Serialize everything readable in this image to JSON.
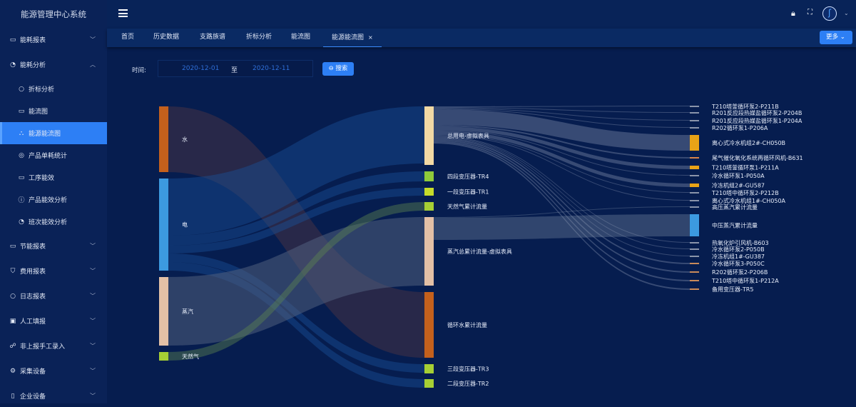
{
  "app": {
    "title": "能源管理中心系统"
  },
  "sidebar": {
    "items": [
      {
        "label": "能耗报表",
        "icon": "report-icon",
        "expand": "down"
      },
      {
        "label": "能耗分析",
        "icon": "analysis-icon",
        "expand": "up"
      },
      {
        "label": "折标分析",
        "icon": "chat-icon",
        "child": true
      },
      {
        "label": "能流图",
        "icon": "report-icon",
        "child": true
      },
      {
        "label": "能源能流图",
        "icon": "sitemap-icon",
        "child": true,
        "active": true
      },
      {
        "label": "产品单耗统计",
        "icon": "location-icon",
        "child": true
      },
      {
        "label": "工序能效",
        "icon": "message-icon",
        "child": true
      },
      {
        "label": "产品能效分析",
        "icon": "info-icon",
        "child": true
      },
      {
        "label": "班次能效分析",
        "icon": "analysis-icon",
        "child": true
      },
      {
        "label": "节能报表",
        "icon": "message-icon",
        "expand": "down"
      },
      {
        "label": "费用报表",
        "icon": "shield-check-icon",
        "expand": "down"
      },
      {
        "label": "日志报表",
        "icon": "chat-icon",
        "expand": "down"
      },
      {
        "label": "人工填报",
        "icon": "image-icon",
        "expand": "down"
      },
      {
        "label": "非上报手工录入",
        "icon": "wechat-icon",
        "expand": "down"
      },
      {
        "label": "采集设备",
        "icon": "gear-icon",
        "expand": "down"
      },
      {
        "label": "企业设备",
        "icon": "mobile-icon",
        "expand": "down"
      }
    ]
  },
  "tabs": [
    {
      "label": "首页"
    },
    {
      "label": "历史数据"
    },
    {
      "label": "支路族谱"
    },
    {
      "label": "折标分析"
    },
    {
      "label": "能流图"
    },
    {
      "label": "能源能流图",
      "active": true,
      "closable": true
    }
  ],
  "tabbar": {
    "more_label": "更多"
  },
  "filter": {
    "label": "时间:",
    "start": "2020-12-01",
    "separator": "至",
    "end": "2020-12-11",
    "search_label": "搜索"
  },
  "sankey": {
    "nodes": [
      {
        "name": "水",
        "color": "#c4601c"
      },
      {
        "name": "电",
        "color": "#3c9ae0"
      },
      {
        "name": "蒸汽",
        "color": "#e3c0a6"
      },
      {
        "name": "天然气",
        "color": "#a6cf34"
      },
      {
        "name": "总用电-虚拟表具",
        "color": "#f2d9a4"
      },
      {
        "name": "四段变压器-TR4",
        "color": "#8fca3a"
      },
      {
        "name": "一段变压器-TR1",
        "color": "#c6dc2a"
      },
      {
        "name": "天然气累计流量",
        "color": "#a6cf34"
      },
      {
        "name": "蒸汽总累计流量-虚拟表具",
        "color": "#e3c0a6"
      },
      {
        "name": "循环水累计流量",
        "color": "#c4601c"
      },
      {
        "name": "三段变压器-TR3",
        "color": "#a6cf34"
      },
      {
        "name": "二段变压器-TR2",
        "color": "#a6cf34"
      },
      {
        "name": "T210塔釜循环泵2-P211B",
        "color": "#8a94aa"
      },
      {
        "name": "R201反应段热媒盐循环泵2-P204B",
        "color": "#8a94aa"
      },
      {
        "name": "R201反应段热媒盐循环泵1-P204A",
        "color": "#8a94aa"
      },
      {
        "name": "R202循环泵1-P206A",
        "color": "#8a94aa"
      },
      {
        "name": "离心式冷水机组2#-CH050B",
        "color": "#e8a317"
      },
      {
        "name": "尾气催化氧化系统再循环风机-B631",
        "color": "#d9844a"
      },
      {
        "name": "T210塔釜循环泵1-P211A",
        "color": "#e8a317"
      },
      {
        "name": "冷水循环泵1-P050A",
        "color": "#8a94aa"
      },
      {
        "name": "冷冻机组2#-GU587",
        "color": "#e8a317"
      },
      {
        "name": "T210塔中循环泵2-P212B",
        "color": "#8a94aa"
      },
      {
        "name": "离心式冷水机组1#-CH050A",
        "color": "#8a94aa"
      },
      {
        "name": "高压蒸汽累计流量",
        "color": "#8a94aa"
      },
      {
        "name": "中压蒸汽累计流量",
        "color": "#3c9ae0"
      },
      {
        "name": "热氧化炉引风机-B603",
        "color": "#8a94aa"
      },
      {
        "name": "冷水循环泵2-P050B",
        "color": "#8a94aa"
      },
      {
        "name": "冷冻机组1#-GU387",
        "color": "#8a94aa"
      },
      {
        "name": "冷水循环泵3-P050C",
        "color": "#c98a5a"
      },
      {
        "name": "R202循环泵2-P206B",
        "color": "#c98a5a"
      },
      {
        "name": "T210塔中循环泵1-P212A",
        "color": "#c98a5a"
      },
      {
        "name": "备用变压器-TR5",
        "color": "#c98a5a"
      }
    ],
    "links": [
      {
        "source": 0,
        "target": 9,
        "value": 92
      },
      {
        "source": 1,
        "target": 4,
        "value": 80
      },
      {
        "source": 1,
        "target": 5,
        "value": 14
      },
      {
        "source": 1,
        "target": 6,
        "value": 11
      },
      {
        "source": 1,
        "target": 10,
        "value": 12
      },
      {
        "source": 1,
        "target": 11,
        "value": 12
      },
      {
        "source": 2,
        "target": 8,
        "value": 96
      },
      {
        "source": 3,
        "target": 7,
        "value": 12
      },
      {
        "source": 4,
        "target": 12,
        "value": 1
      },
      {
        "source": 4,
        "target": 13,
        "value": 1
      },
      {
        "source": 4,
        "target": 14,
        "value": 1
      },
      {
        "source": 4,
        "target": 15,
        "value": 1
      },
      {
        "source": 4,
        "target": 16,
        "value": 22
      },
      {
        "source": 4,
        "target": 17,
        "value": 2
      },
      {
        "source": 4,
        "target": 18,
        "value": 5
      },
      {
        "source": 4,
        "target": 19,
        "value": 1
      },
      {
        "source": 4,
        "target": 20,
        "value": 5
      },
      {
        "source": 4,
        "target": 21,
        "value": 1
      },
      {
        "source": 4,
        "target": 22,
        "value": 1
      },
      {
        "source": 8,
        "target": 23,
        "value": 1
      },
      {
        "source": 8,
        "target": 24,
        "value": 31
      },
      {
        "source": 4,
        "target": 25,
        "value": 1
      },
      {
        "source": 4,
        "target": 26,
        "value": 1
      },
      {
        "source": 4,
        "target": 27,
        "value": 1
      },
      {
        "source": 4,
        "target": 28,
        "value": 2
      },
      {
        "source": 4,
        "target": 29,
        "value": 2
      },
      {
        "source": 4,
        "target": 30,
        "value": 2
      },
      {
        "source": 4,
        "target": 31,
        "value": 2
      }
    ]
  }
}
